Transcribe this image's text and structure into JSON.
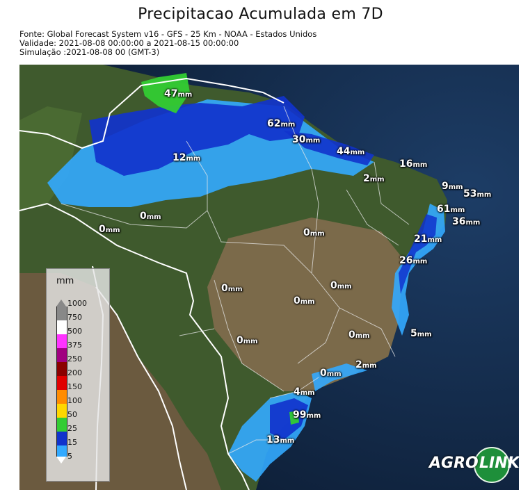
{
  "title": "Precipitacao Acumulada em 7D",
  "meta": {
    "source": "Fonte: Global Forecast System v16 - GFS - 25 Km - NOAA - Estados Unidos",
    "validity": "Validade: 2021-08-08 00:00:00 a 2021-08-15 00:00:00",
    "simulation": "Simulação :2021-08-08 00 (GMT-3)"
  },
  "legend": {
    "title": "mm",
    "levels": [
      "1000",
      "750",
      "500",
      "375",
      "250",
      "200",
      "150",
      "100",
      "50",
      "25",
      "15",
      "5"
    ],
    "colors": [
      "#888888",
      "#ffffff",
      "#ff33ff",
      "#a00080",
      "#8b0000",
      "#e00000",
      "#ff8c00",
      "#ffd700",
      "#ffff33",
      "#33cc33",
      "#1133cc",
      "#33aaff",
      "#ffffff"
    ]
  },
  "labels": [
    {
      "value": "47",
      "unit": "mm"
    },
    {
      "value": "62",
      "unit": "mm"
    },
    {
      "value": "30",
      "unit": "mm"
    },
    {
      "value": "44",
      "unit": "mm"
    },
    {
      "value": "16",
      "unit": "mm"
    },
    {
      "value": "12",
      "unit": "mm"
    },
    {
      "value": "2",
      "unit": "mm"
    },
    {
      "value": "9",
      "unit": "mm"
    },
    {
      "value": "53",
      "unit": "mm"
    },
    {
      "value": "61",
      "unit": "mm"
    },
    {
      "value": "36",
      "unit": "mm"
    },
    {
      "value": "0",
      "unit": "mm"
    },
    {
      "value": "0",
      "unit": "mm"
    },
    {
      "value": "0",
      "unit": "mm"
    },
    {
      "value": "21",
      "unit": "mm"
    },
    {
      "value": "26",
      "unit": "mm"
    },
    {
      "value": "0",
      "unit": "mm"
    },
    {
      "value": "0",
      "unit": "mm"
    },
    {
      "value": "0",
      "unit": "mm"
    },
    {
      "value": "0",
      "unit": "mm"
    },
    {
      "value": "0",
      "unit": "mm"
    },
    {
      "value": "5",
      "unit": "mm"
    },
    {
      "value": "0",
      "unit": "mm"
    },
    {
      "value": "2",
      "unit": "mm"
    },
    {
      "value": "4",
      "unit": "mm"
    },
    {
      "value": "99",
      "unit": "mm"
    },
    {
      "value": "13",
      "unit": "mm"
    }
  ],
  "brand": {
    "part1": "AGRO",
    "part2": "LINK"
  }
}
